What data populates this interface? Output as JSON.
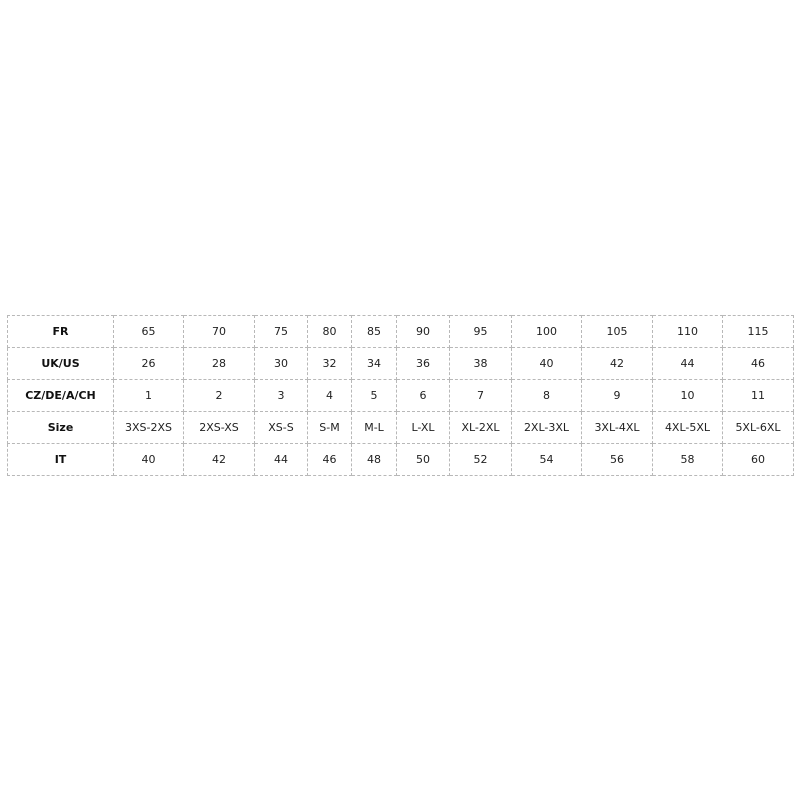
{
  "table": {
    "rows": [
      {
        "label": "FR",
        "values": [
          "65",
          "70",
          "75",
          "80",
          "85",
          "90",
          "95",
          "100",
          "105",
          "110",
          "115"
        ]
      },
      {
        "label": "UK/US",
        "values": [
          "26",
          "28",
          "30",
          "32",
          "34",
          "36",
          "38",
          "40",
          "42",
          "44",
          "46"
        ]
      },
      {
        "label": "CZ/DE/A/CH",
        "values": [
          "1",
          "2",
          "3",
          "4",
          "5",
          "6",
          "7",
          "8",
          "9",
          "10",
          "11"
        ]
      },
      {
        "label": "Size",
        "values": [
          "3XS-2XS",
          "2XS-XS",
          "XS-S",
          "S-M",
          "M-L",
          "L-XL",
          "XL-2XL",
          "2XL-3XL",
          "3XL-4XL",
          "4XL-5XL",
          "5XL-6XL"
        ]
      },
      {
        "label": "IT",
        "values": [
          "40",
          "42",
          "44",
          "46",
          "48",
          "50",
          "52",
          "54",
          "56",
          "58",
          "60"
        ]
      }
    ]
  }
}
